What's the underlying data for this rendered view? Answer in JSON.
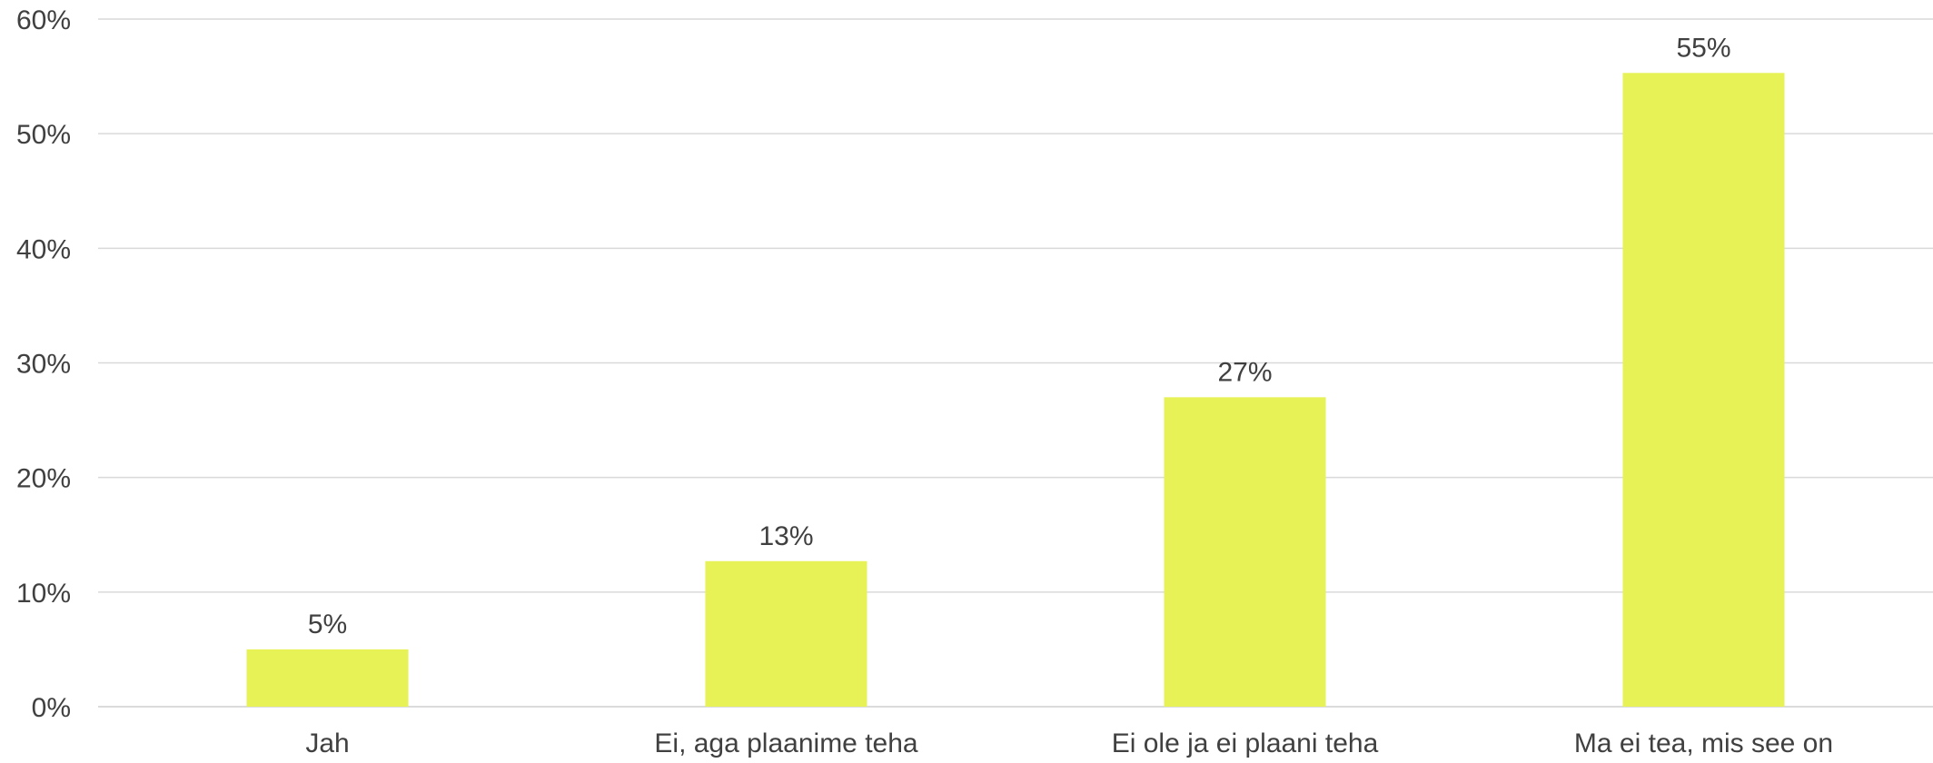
{
  "chart_data": {
    "type": "bar",
    "categories": [
      "Jah",
      "Ei, aga plaanime teha",
      "Ei ole ja ei plaani teha",
      "Ma ei tea, mis see on"
    ],
    "values": [
      5,
      12.7,
      27,
      55.3
    ],
    "value_labels": [
      "5%",
      "13%",
      "27%",
      "55%"
    ],
    "y_ticks": [
      "0%",
      "10%",
      "20%",
      "30%",
      "40%",
      "50%",
      "60%"
    ],
    "ylim": [
      0,
      60
    ],
    "grid": true,
    "legend": "none",
    "bar_color": "#E6F255"
  }
}
